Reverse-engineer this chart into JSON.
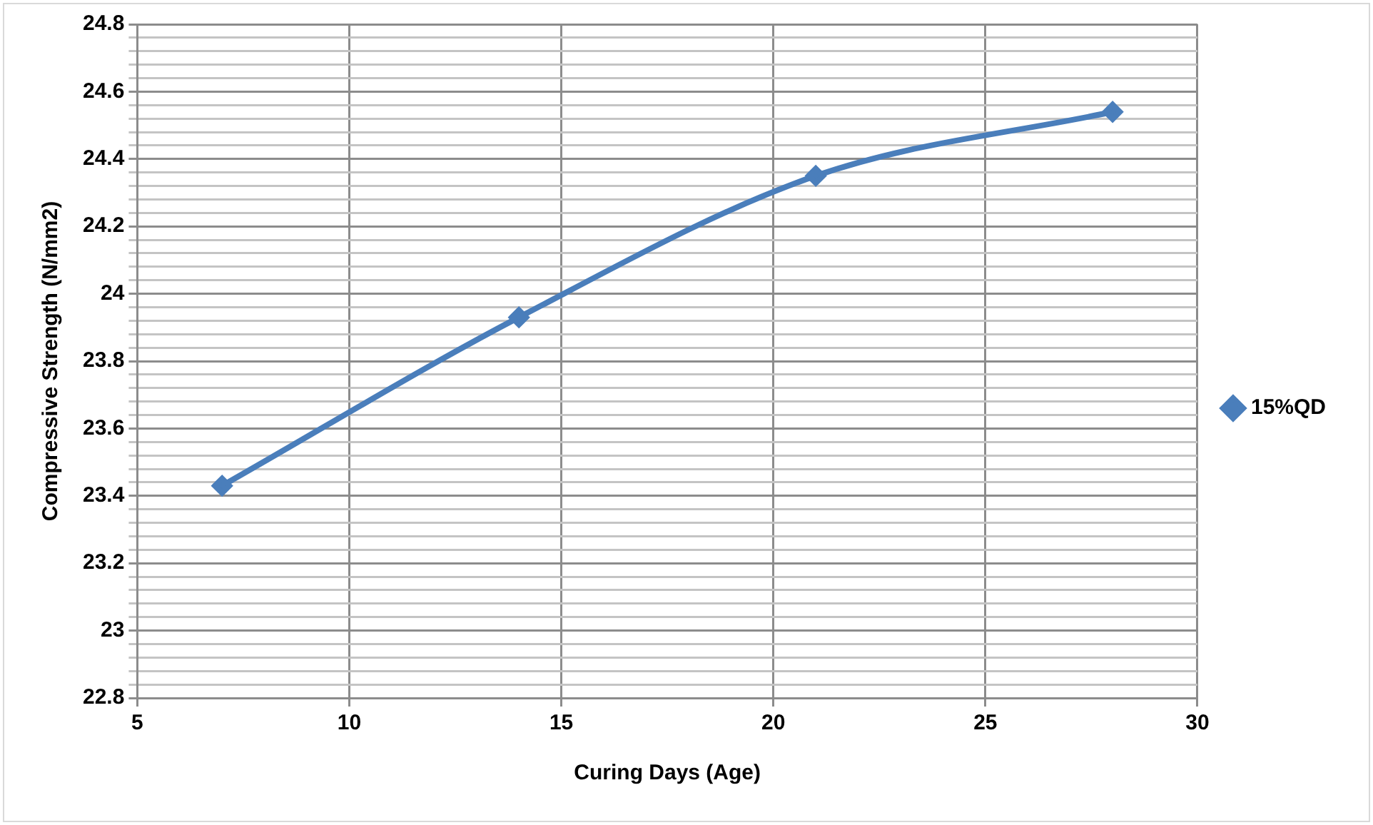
{
  "chart_data": {
    "type": "line",
    "xlabel": "Curing Days (Age)",
    "ylabel": "Compressive Strength (N/mm2)",
    "x": [
      7,
      14,
      21,
      28
    ],
    "series": [
      {
        "name": "15%QD",
        "color": "#4a7ebb",
        "values": [
          23.43,
          23.93,
          24.35,
          24.54
        ]
      }
    ],
    "xlim": [
      5,
      30
    ],
    "xticks": [
      5,
      10,
      15,
      20,
      25,
      30
    ],
    "ylim": [
      22.8,
      24.8
    ],
    "yticks": [
      22.8,
      {
        "value": 22.84,
        "label": null
      },
      {
        "value": 22.88,
        "label": null
      },
      {
        "value": 22.92,
        "label": null
      },
      {
        "value": 22.96,
        "label": null
      },
      23,
      {
        "value": 23.04,
        "label": null
      },
      {
        "value": 23.08,
        "label": null
      },
      {
        "value": 23.12,
        "label": null
      },
      {
        "value": 23.16,
        "label": null
      },
      23.2,
      {
        "value": 23.24,
        "label": null
      },
      {
        "value": 23.28,
        "label": null
      },
      {
        "value": 23.32,
        "label": null
      },
      {
        "value": 23.36,
        "label": null
      },
      23.4,
      {
        "value": 23.44,
        "label": null
      },
      {
        "value": 23.48,
        "label": null
      },
      {
        "value": 23.52,
        "label": null
      },
      {
        "value": 23.56,
        "label": null
      },
      23.6,
      {
        "value": 23.64,
        "label": null
      },
      {
        "value": 23.68,
        "label": null
      },
      {
        "value": 23.72,
        "label": null
      },
      {
        "value": 23.76,
        "label": null
      },
      23.8,
      {
        "value": 23.84,
        "label": null
      },
      {
        "value": 23.88,
        "label": null
      },
      {
        "value": 23.92,
        "label": null
      },
      {
        "value": 23.96,
        "label": null
      },
      24,
      {
        "value": 24.04,
        "label": null
      },
      {
        "value": 24.08,
        "label": null
      },
      {
        "value": 24.12,
        "label": null
      },
      {
        "value": 24.16,
        "label": null
      },
      24.2,
      {
        "value": 24.24,
        "label": null
      },
      {
        "value": 24.28,
        "label": null
      },
      {
        "value": 24.32,
        "label": null
      },
      {
        "value": 24.36,
        "label": null
      },
      24.4,
      {
        "value": 24.44,
        "label": null
      },
      {
        "value": 24.48,
        "label": null
      },
      {
        "value": 24.52,
        "label": null
      },
      {
        "value": 24.56,
        "label": null
      },
      24.6,
      {
        "value": 24.64,
        "label": null
      },
      {
        "value": 24.68,
        "label": null
      },
      {
        "value": 24.72,
        "label": null
      },
      {
        "value": 24.76,
        "label": null
      },
      24.8
    ],
    "grid": true,
    "legend": "right",
    "marker": "diamond",
    "line_style": "solid"
  }
}
